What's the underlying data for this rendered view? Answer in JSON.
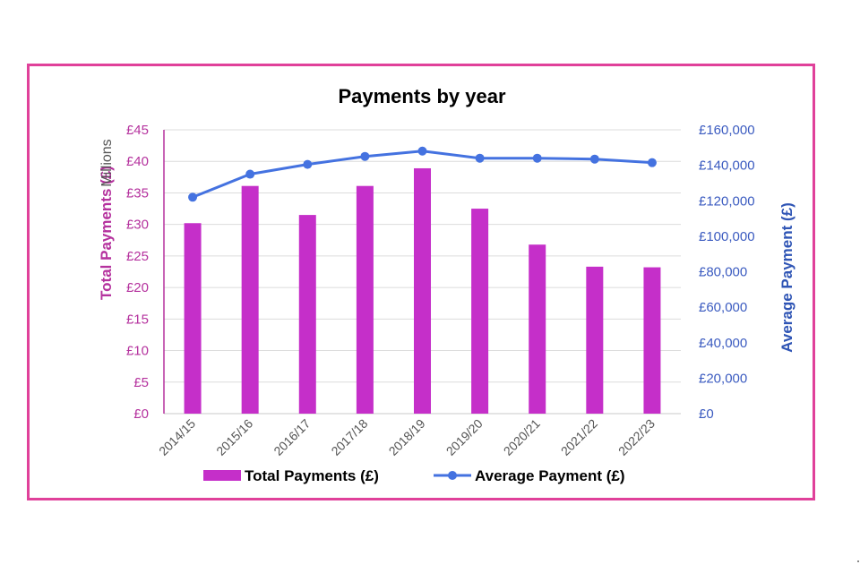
{
  "chart_data": {
    "type": "bar",
    "title": "Payments by year",
    "categories": [
      "2014/15",
      "2015/16",
      "2016/17",
      "2017/18",
      "2018/19",
      "2019/20",
      "2020/21",
      "2021/22",
      "2022/23"
    ],
    "series": [
      {
        "name": "Total Payments (£)",
        "type": "bar",
        "axis": "left",
        "values": [
          30.2,
          36.1,
          31.5,
          36.1,
          38.9,
          32.5,
          26.8,
          23.3,
          23.2
        ]
      },
      {
        "name": "Average Payment (£)",
        "type": "line",
        "axis": "right",
        "values": [
          122000,
          135000,
          140500,
          145000,
          148000,
          144000,
          144000,
          143500,
          141500
        ]
      }
    ],
    "ylabel_left": "Total Payments (£)",
    "ylabel_left_unit": "Millions",
    "ylabel_right": "Average Payment (£)",
    "ylim_left": [
      0,
      45
    ],
    "ylim_right": [
      0,
      160000
    ],
    "yticks_left": [
      "£0",
      "£5",
      "£10",
      "£15",
      "£20",
      "£25",
      "£30",
      "£35",
      "£40",
      "£45"
    ],
    "yticks_right": [
      "£0",
      "£20,000",
      "£40,000",
      "£60,000",
      "£80,000",
      "£100,000",
      "£120,000",
      "£140,000",
      "£160,000"
    ],
    "grid": true,
    "legend_position": "bottom",
    "colors": {
      "bar": "#C52FC9",
      "line": "#4472E0",
      "frame": "#E0419A",
      "left_axis": "#B5329E",
      "right_axis": "#2F55B5"
    }
  }
}
